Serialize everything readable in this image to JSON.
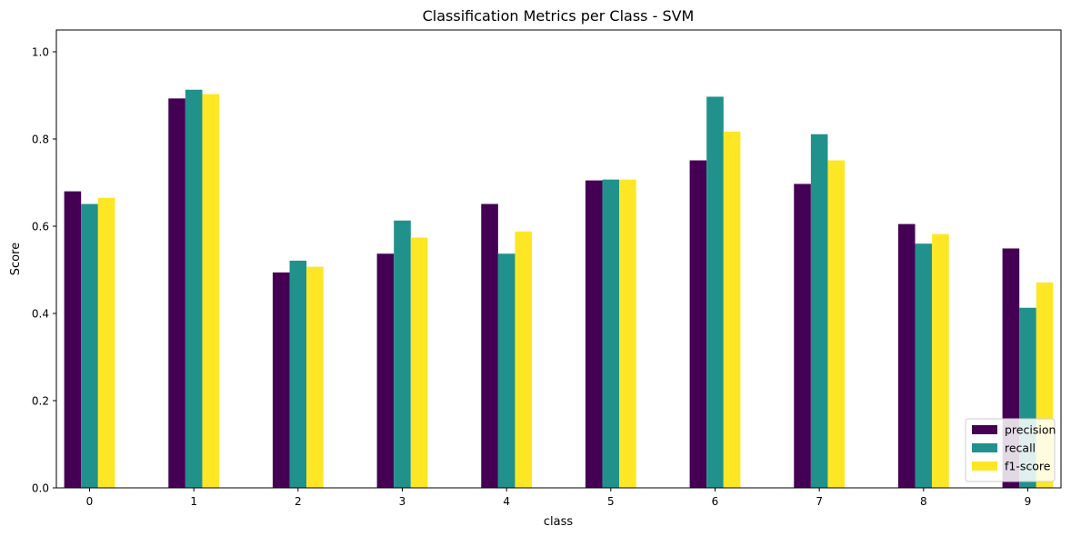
{
  "chart_data": {
    "type": "bar",
    "title": "Classification Metrics per Class - SVM",
    "xlabel": "class",
    "ylabel": "Score",
    "categories": [
      "0",
      "1",
      "2",
      "3",
      "4",
      "5",
      "6",
      "7",
      "8",
      "9"
    ],
    "series": [
      {
        "name": "precision",
        "color": "#440154",
        "values": [
          0.68,
          0.893,
          0.494,
          0.537,
          0.651,
          0.705,
          0.751,
          0.697,
          0.605,
          0.549
        ]
      },
      {
        "name": "recall",
        "color": "#21918c",
        "values": [
          0.651,
          0.913,
          0.521,
          0.613,
          0.537,
          0.707,
          0.897,
          0.811,
          0.56,
          0.413
        ]
      },
      {
        "name": "f1-score",
        "color": "#fde725",
        "values": [
          0.665,
          0.903,
          0.507,
          0.574,
          0.588,
          0.707,
          0.817,
          0.751,
          0.582,
          0.471
        ]
      }
    ],
    "ylim": [
      0,
      1.05
    ],
    "yticks": [
      "0.0",
      "0.2",
      "0.4",
      "0.6",
      "0.8",
      "1.0"
    ],
    "grid": false,
    "legend_position": "bottom-right"
  }
}
